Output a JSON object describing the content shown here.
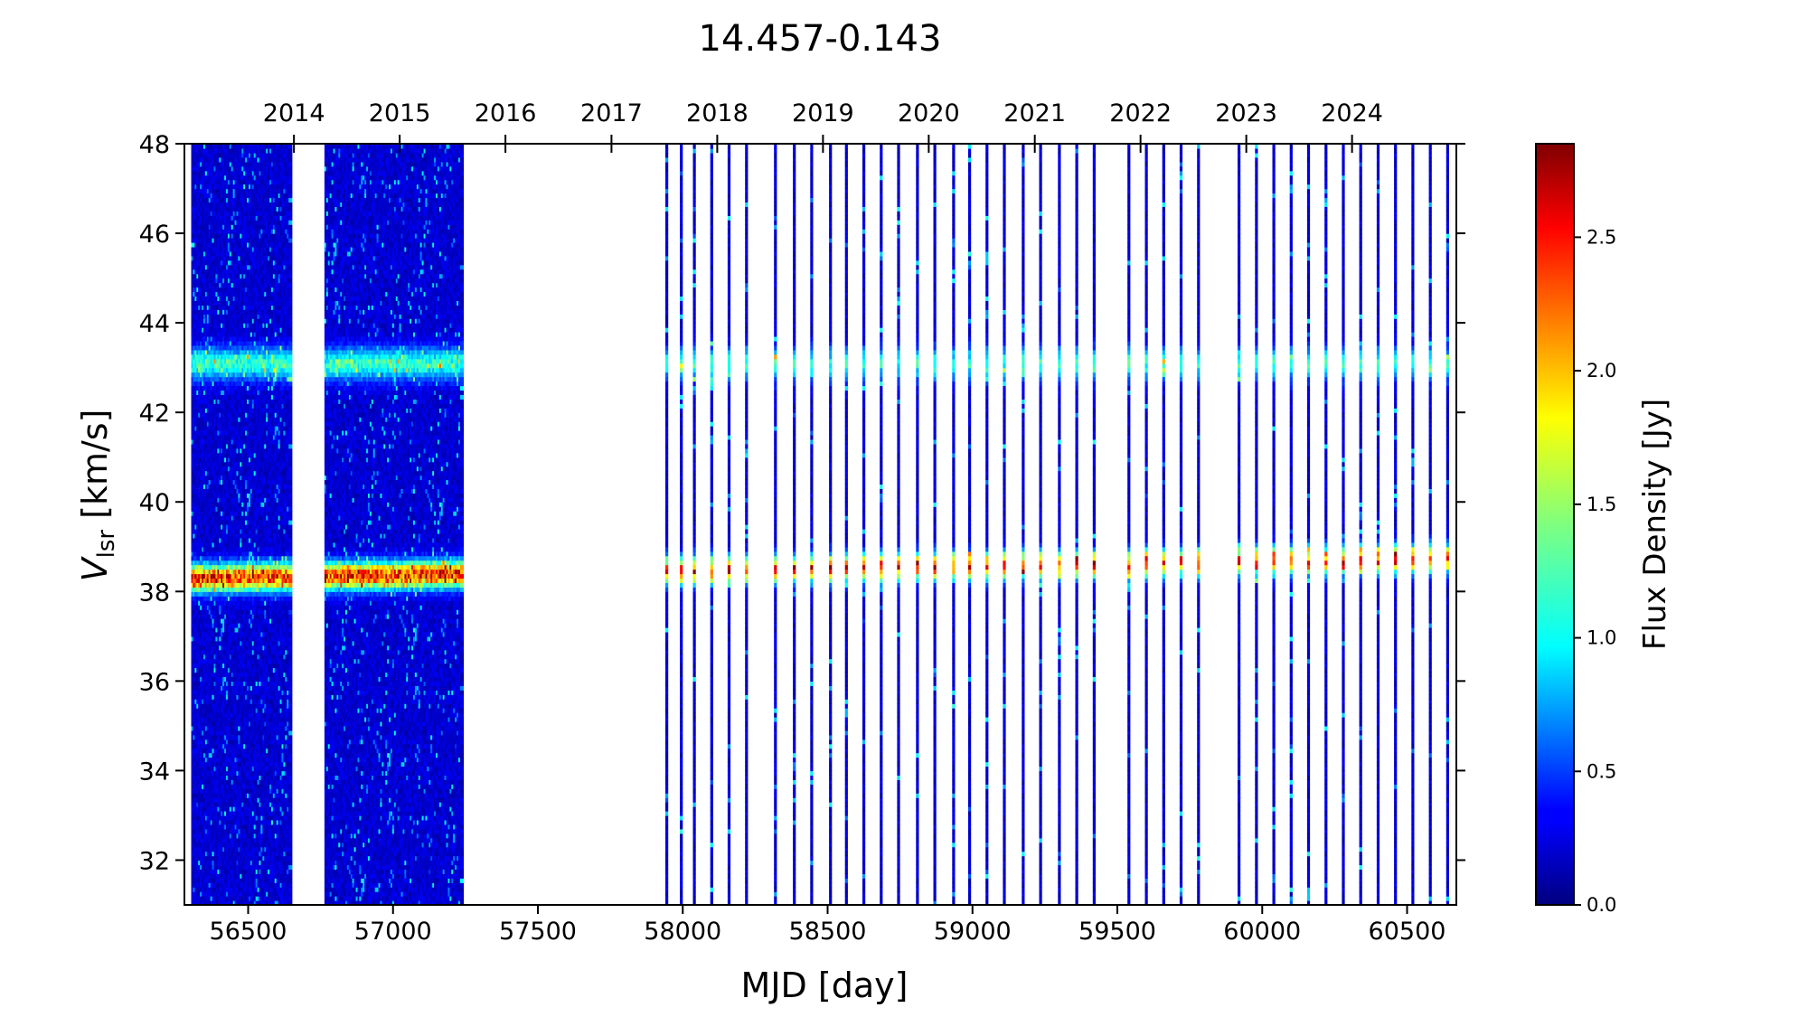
{
  "chart_data": {
    "type": "heatmap",
    "title": "14.457-0.143",
    "xlabel": "MJD [day]",
    "ylabel_main": "V",
    "ylabel_sub": "lsr",
    "ylabel_unit": " [km/s]",
    "colorbar_label": "Flux Density [Jy]",
    "xlim": [
      56280,
      60670
    ],
    "ylim": [
      31,
      48
    ],
    "clim": [
      0,
      2.85
    ],
    "colormap": "jet",
    "x_ticks": [
      56500,
      57000,
      57500,
      58000,
      58500,
      59000,
      59500,
      60000,
      60500
    ],
    "x_tick_labels": [
      "56500",
      "57000",
      "57500",
      "58000",
      "58500",
      "59000",
      "59500",
      "60000",
      "60500"
    ],
    "y_ticks": [
      32,
      34,
      36,
      38,
      40,
      42,
      44,
      46,
      48
    ],
    "y_tick_labels": [
      "32",
      "34",
      "36",
      "38",
      "40",
      "42",
      "44",
      "46",
      "48"
    ],
    "top_axis_years": [
      "2014",
      "2015",
      "2016",
      "2017",
      "2018",
      "2019",
      "2020",
      "2021",
      "2022",
      "2023",
      "2024"
    ],
    "top_axis_year_mjd": [
      56658,
      57023,
      57388,
      57754,
      58119,
      58484,
      58849,
      59215,
      59580,
      59945,
      60310
    ],
    "colorbar_ticks": [
      0.0,
      0.5,
      1.0,
      1.5,
      2.0,
      2.5
    ],
    "colorbar_tick_labels": [
      "0.0",
      "0.5",
      "1.0",
      "1.5",
      "2.0",
      "2.5"
    ],
    "dense_epoch_ranges": [
      [
        56310,
        56650
      ],
      [
        56770,
        57240
      ]
    ],
    "sparse_epochs": [
      57945,
      57995,
      58040,
      58100,
      58160,
      58220,
      58320,
      58385,
      58445,
      58510,
      58565,
      58625,
      58685,
      58745,
      58810,
      58870,
      58935,
      58990,
      59050,
      59110,
      59175,
      59235,
      59300,
      59360,
      59420,
      59540,
      59600,
      59660,
      59720,
      59780,
      59920,
      59980,
      60040,
      60100,
      60160,
      60220,
      60280,
      60340,
      60400,
      60460,
      60520,
      60580,
      60640
    ],
    "emission_features": [
      {
        "velocity": 43.1,
        "width": 0.35,
        "peak_flux": 1.05
      },
      {
        "velocity_start": 38.3,
        "velocity_end": 38.75,
        "width": 0.3,
        "peak_flux": 2.7
      }
    ]
  }
}
